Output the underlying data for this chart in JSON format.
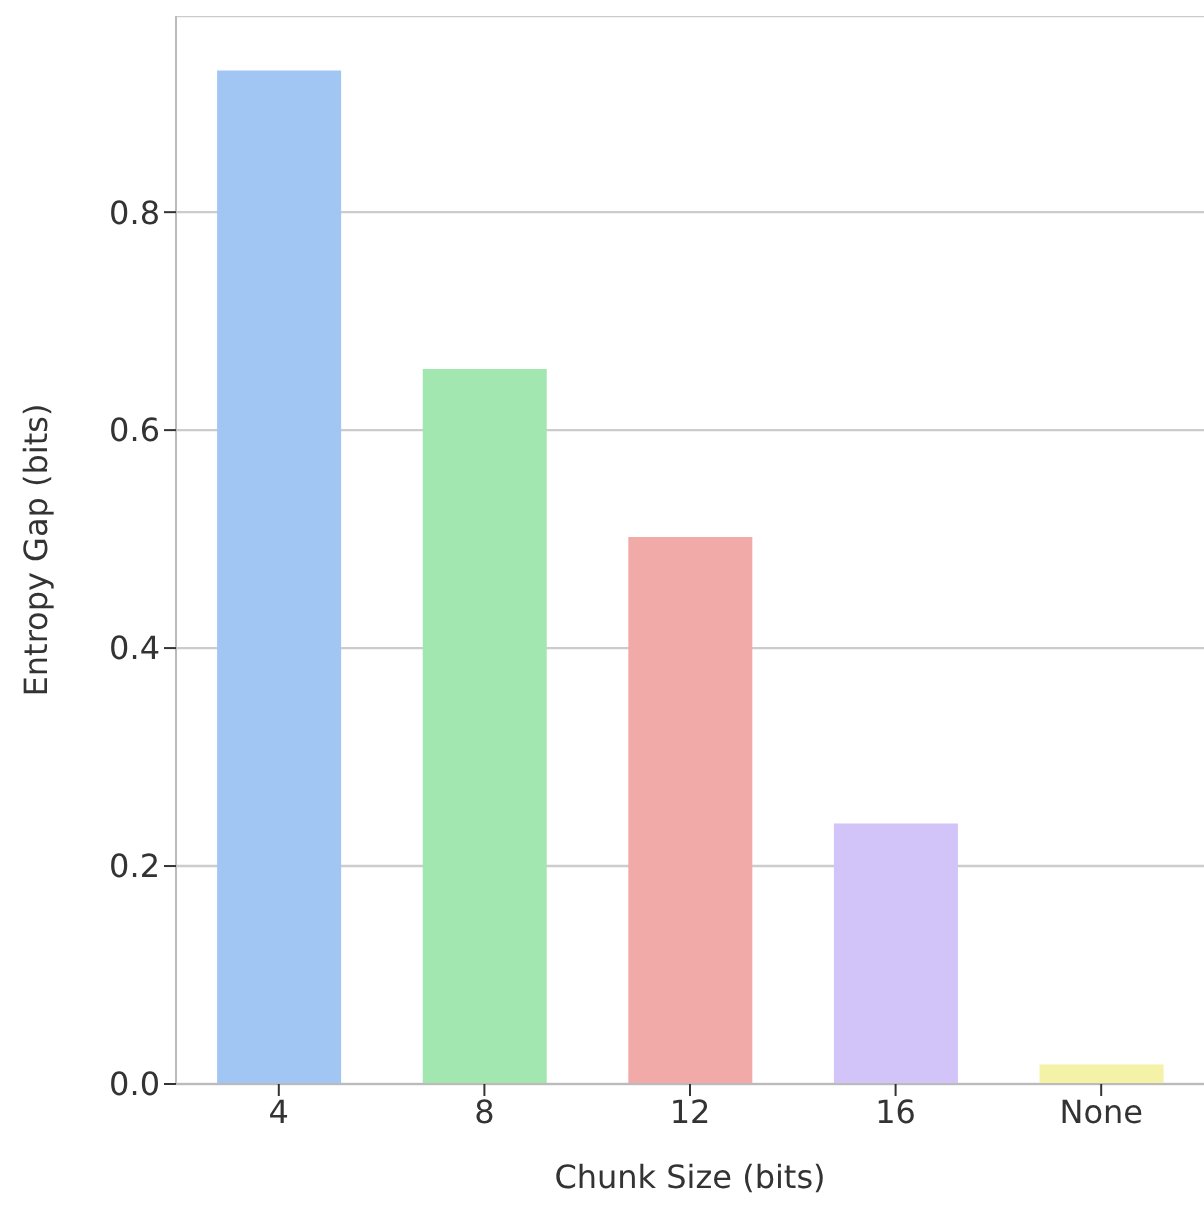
{
  "chart_data": {
    "type": "bar",
    "xlabel": "Chunk Size (bits)",
    "ylabel": "Entropy Gap (bits)",
    "categories": [
      "4",
      "8",
      "12",
      "16",
      "None"
    ],
    "values": [
      0.93,
      0.656,
      0.502,
      0.239,
      0.018
    ],
    "colors": [
      "#a1c6f3",
      "#a2e6b0",
      "#f2aaa8",
      "#d2c3f8",
      "#f3f2a6"
    ],
    "ylim": [
      0,
      0.98
    ],
    "yticks": [
      {
        "value": 0,
        "label": "0.0"
      },
      {
        "value": 0.2,
        "label": "0.2"
      },
      {
        "value": 0.4,
        "label": "0.4"
      },
      {
        "value": 0.6,
        "label": "0.6"
      },
      {
        "value": 0.8,
        "label": "0.8"
      }
    ],
    "grid": "y"
  }
}
